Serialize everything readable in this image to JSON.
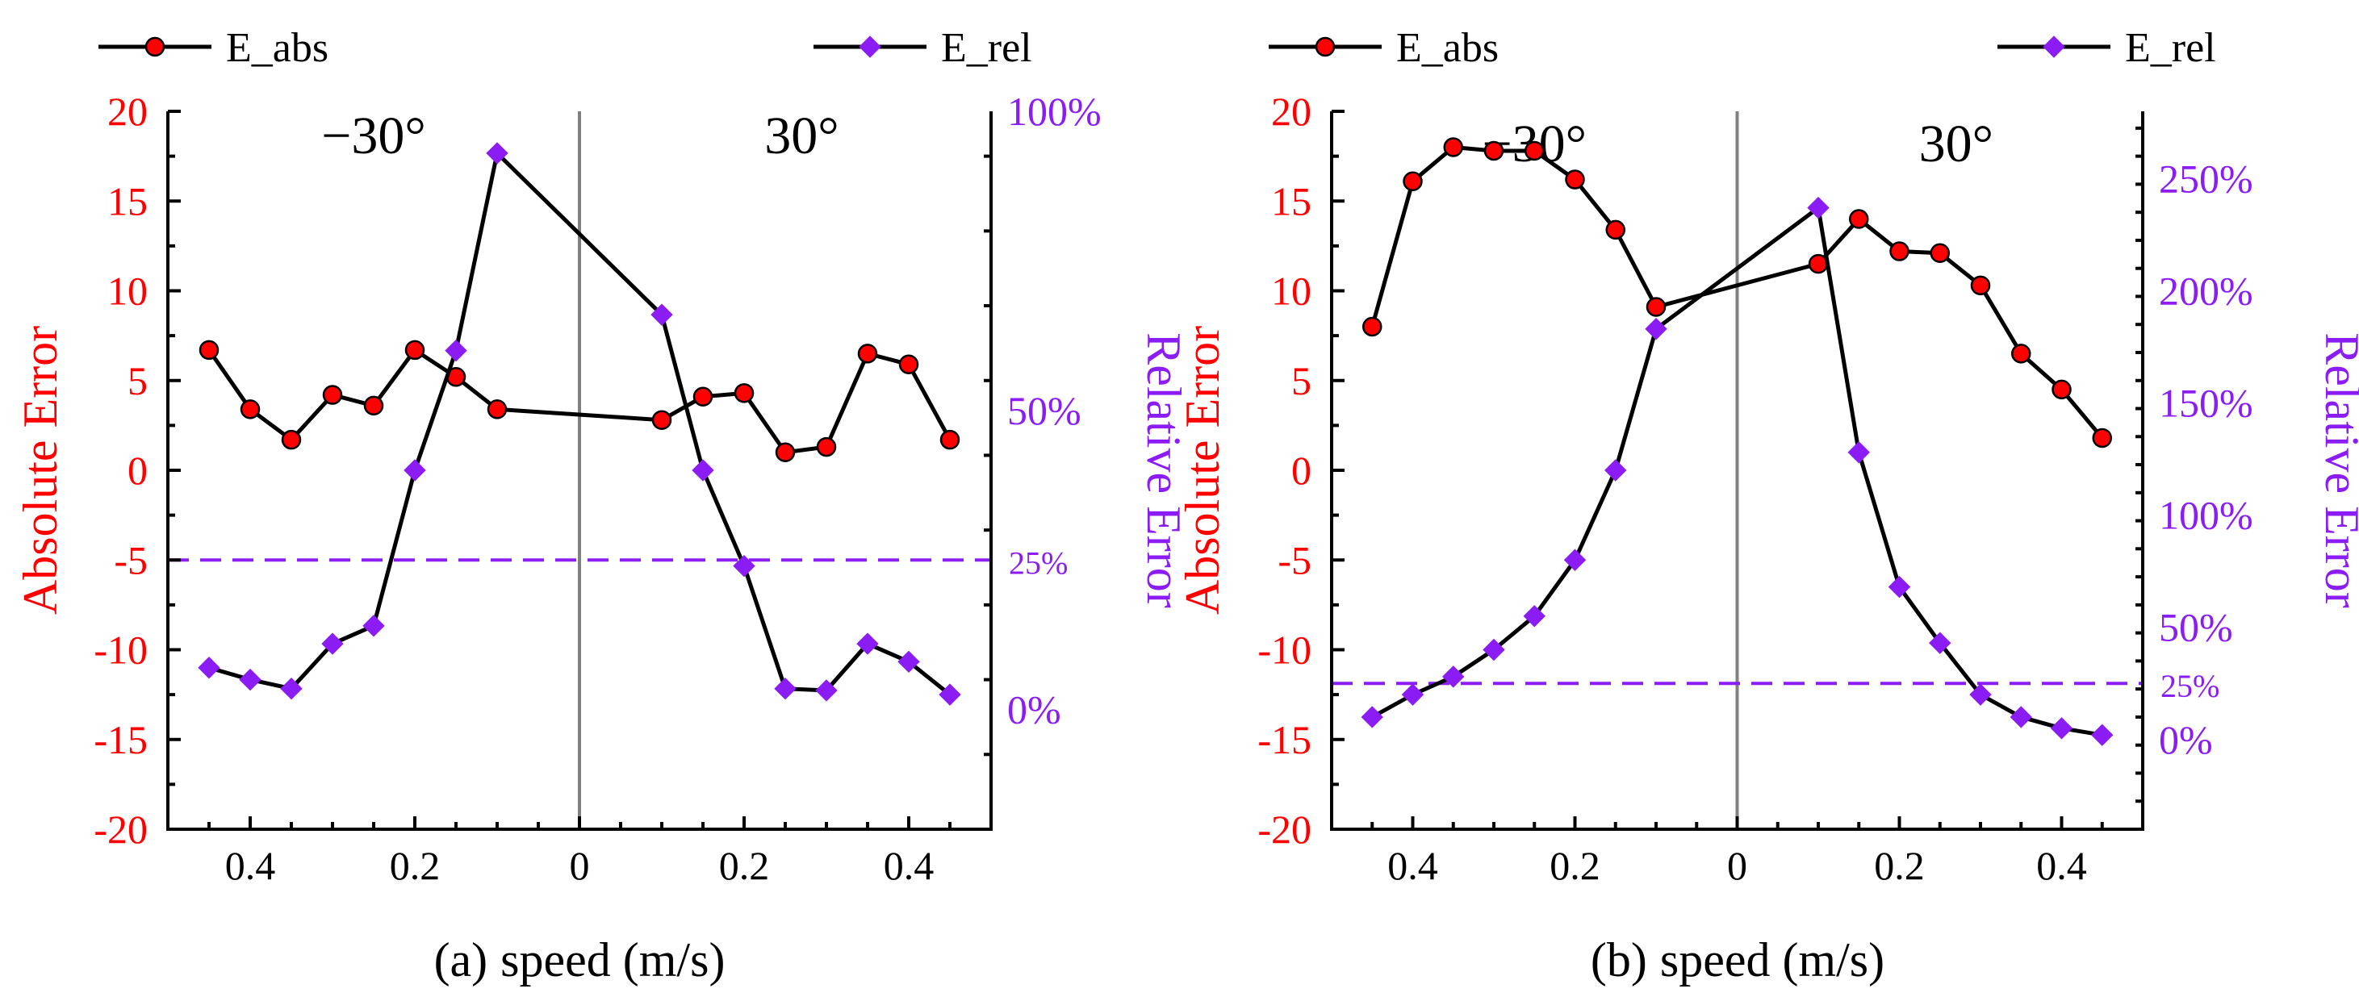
{
  "colors": {
    "abs": "#ff0000",
    "rel": "#8b1cf4",
    "line": "#000000",
    "axis": "#000000",
    "center": "#808080"
  },
  "chart_data": [
    {
      "type": "line",
      "panel_label": "(a)",
      "xlabel": "speed (m/s)",
      "ylabel_left": "Absolute Error",
      "ylabel_right": "Relative Error",
      "left_angle": "−30°",
      "right_angle": "30°",
      "x_tick_labels": [
        "0.4",
        "0.2",
        "0",
        "0.2",
        "0.4"
      ],
      "x_ticks_signed": [
        -0.4,
        -0.2,
        0,
        0.2,
        0.4
      ],
      "xlim": [
        -0.5,
        0.5
      ],
      "ylim_left": [
        -20,
        20
      ],
      "yticks_left": [
        -20,
        -15,
        -10,
        -5,
        0,
        5,
        10,
        15,
        20
      ],
      "ytick_labels_left": [
        "-20",
        "-15",
        "-10",
        "-5",
        "0",
        "5",
        "10",
        "15",
        "20"
      ],
      "ylim_right": [
        -20,
        100
      ],
      "yticks_right": [
        0,
        50,
        100
      ],
      "ytick_labels_right": [
        "0%",
        "50%",
        "100%"
      ],
      "threshold_value": 25,
      "threshold_label": "25%",
      "legend": [
        "E_abs",
        "E_rel"
      ],
      "series": [
        {
          "name": "E_abs",
          "axis": "left",
          "x": [
            -0.45,
            -0.4,
            -0.35,
            -0.3,
            -0.25,
            -0.2,
            -0.15,
            -0.1,
            0.1,
            0.15,
            0.2,
            0.25,
            0.3,
            0.35,
            0.4,
            0.45
          ],
          "values": [
            6.7,
            3.4,
            1.7,
            4.2,
            3.6,
            6.7,
            5.2,
            3.4,
            2.8,
            4.1,
            4.3,
            1.0,
            1.3,
            6.5,
            5.9,
            1.7
          ]
        },
        {
          "name": "E_rel",
          "axis": "right",
          "x": [
            -0.45,
            -0.4,
            -0.35,
            -0.3,
            -0.25,
            -0.2,
            -0.15,
            -0.1,
            0.1,
            0.15,
            0.2,
            0.25,
            0.3,
            0.35,
            0.4,
            0.45
          ],
          "values": [
            7,
            5,
            3.5,
            11,
            14,
            40,
            60,
            93,
            66,
            40,
            24,
            3.5,
            3.2,
            11,
            8,
            2.5
          ]
        }
      ]
    },
    {
      "type": "line",
      "panel_label": "(b)",
      "xlabel": "speed (m/s)",
      "ylabel_left": "Absolute Error",
      "ylabel_right": "Relative Error",
      "left_angle": "−30°",
      "right_angle": "30°",
      "x_tick_labels": [
        "0.4",
        "0.2",
        "0",
        "0.2",
        "0.4"
      ],
      "x_ticks_signed": [
        -0.4,
        -0.2,
        0,
        0.2,
        0.4
      ],
      "xlim": [
        -0.5,
        0.5
      ],
      "ylim_left": [
        -20,
        20
      ],
      "yticks_left": [
        -20,
        -15,
        -10,
        -5,
        0,
        5,
        10,
        15,
        20
      ],
      "ytick_labels_left": [
        "-20",
        "-15",
        "-10",
        "-5",
        "0",
        "5",
        "10",
        "15",
        "20"
      ],
      "ylim_right": [
        -40,
        280
      ],
      "yticks_right": [
        0,
        50,
        100,
        150,
        200,
        250
      ],
      "ytick_labels_right": [
        "0%",
        "50%",
        "100%",
        "150%",
        "200%",
        "250%"
      ],
      "threshold_value": 25,
      "threshold_label": "25%",
      "legend": [
        "E_abs",
        "E_rel"
      ],
      "series": [
        {
          "name": "E_abs",
          "axis": "left",
          "x": [
            -0.45,
            -0.4,
            -0.35,
            -0.3,
            -0.25,
            -0.2,
            -0.15,
            -0.1,
            0.1,
            0.15,
            0.2,
            0.25,
            0.3,
            0.35,
            0.4,
            0.45
          ],
          "values": [
            8.0,
            16.1,
            18.0,
            17.8,
            17.8,
            16.2,
            13.4,
            9.1,
            11.5,
            14.0,
            12.2,
            12.1,
            10.3,
            6.5,
            4.5,
            1.8
          ]
        },
        {
          "name": "E_rel",
          "axis": "right",
          "x": [
            -0.45,
            -0.4,
            -0.35,
            -0.3,
            -0.25,
            -0.2,
            -0.15,
            -0.1,
            0.1,
            0.15,
            0.2,
            0.25,
            0.3,
            0.35,
            0.4,
            0.45
          ],
          "values": [
            10,
            20,
            28,
            40,
            55,
            80,
            120,
            183,
            237,
            128,
            68,
            43,
            20,
            10,
            5,
            2
          ]
        }
      ]
    }
  ]
}
